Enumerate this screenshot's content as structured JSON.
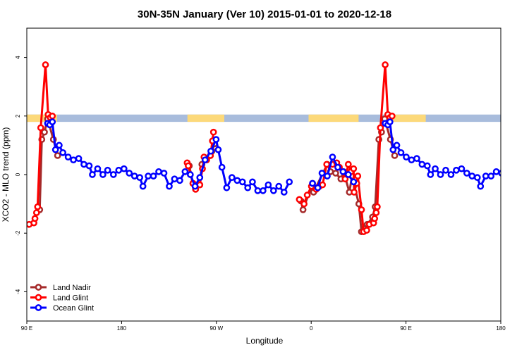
{
  "chart_data": {
    "type": "line",
    "title": "30N-35N January (Ver 10)   2015-01-01 to 2020-12-18",
    "xlabel": "Longitude",
    "ylabel": "XCO2 - MLO trend (ppm)",
    "xlim": [
      -90,
      270
    ],
    "ylim": [
      -5,
      5
    ],
    "x_ticks": [
      {
        "value": -90,
        "label": "90 E"
      },
      {
        "value": -18,
        "label": "180"
      },
      {
        "value": 54,
        "label": "90 W"
      },
      {
        "value": 126,
        "label": "0"
      },
      {
        "value": 198,
        "label": "90 E"
      },
      {
        "value": 270,
        "label": "180"
      }
    ],
    "y_ticks": [
      -4,
      -2,
      0,
      2,
      4
    ],
    "grid": false,
    "legend_position": "bottom-left",
    "surface_band": {
      "y_range": [
        1.8,
        2.05
      ],
      "ocean_color": "#a8bcdc",
      "land_color": "#fcd97a",
      "land_x_ranges": [
        [
          -90,
          -67
        ],
        [
          32,
          60
        ],
        [
          124,
          162
        ],
        [
          187,
          213
        ]
      ]
    },
    "series": [
      {
        "name": "Land Nadir",
        "color": "#a52a2a",
        "points": [
          [
            -80.2,
            -1.2
          ],
          [
            -78.6,
            1.2
          ],
          [
            -76.6,
            1.45
          ],
          [
            -74.2,
            1.9
          ],
          [
            -69.8,
            1.2
          ],
          [
            -66.6,
            0.65
          ],
          [
            33.4,
            0.3
          ],
          [
            36.2,
            -0.3
          ],
          [
            38.2,
            -0.5
          ],
          [
            41.4,
            -0.35
          ],
          [
            43,
            0.35
          ],
          [
            49.4,
            0.65
          ],
          [
            50.6,
            0.8
          ],
          [
            52.6,
            1.05
          ],
          [
            118.2,
            -0.9
          ],
          [
            119.8,
            -1.2
          ],
          [
            127,
            -0.3
          ],
          [
            127.8,
            -0.6
          ],
          [
            138.2,
            0.35
          ],
          [
            140.6,
            0.1
          ],
          [
            144.6,
            0.05
          ],
          [
            148.6,
            -0.15
          ],
          [
            150.6,
            0.1
          ],
          [
            155,
            -0.6
          ],
          [
            157,
            -0.05
          ],
          [
            162.2,
            -1
          ],
          [
            164.2,
            -1.95
          ],
          [
            166.2,
            -1.85
          ],
          [
            168.6,
            -1.7
          ],
          [
            172.6,
            -1.45
          ],
          [
            174.6,
            -1.1
          ],
          [
            177.4,
            1.2
          ],
          [
            179.4,
            1.45
          ],
          [
            181.8,
            1.9
          ],
          [
            186.2,
            1.2
          ],
          [
            189.4,
            0.65
          ]
        ]
      },
      {
        "name": "Land Glint",
        "color": "#ff0000",
        "points": [
          [
            -88.2,
            -1.7
          ],
          [
            -84.6,
            -1.65
          ],
          [
            -83.8,
            -1.5
          ],
          [
            -82.6,
            -1.3
          ],
          [
            -81.8,
            -1.1
          ],
          [
            -79.4,
            1.6
          ],
          [
            -75.8,
            3.75
          ],
          [
            -73.8,
            2.05
          ],
          [
            -72.2,
            1.95
          ],
          [
            -70.6,
            2.0
          ],
          [
            31.8,
            0.4
          ],
          [
            32.6,
            0.3
          ],
          [
            36.2,
            -0.3
          ],
          [
            38.2,
            -0.5
          ],
          [
            41.4,
            -0.35
          ],
          [
            43.4,
            0.2
          ],
          [
            44.6,
            0.6
          ],
          [
            46.6,
            0.5
          ],
          [
            49.4,
            0.65
          ],
          [
            51,
            1.15
          ],
          [
            51.8,
            1.45
          ],
          [
            117,
            -0.85
          ],
          [
            120.6,
            -1.0
          ],
          [
            123,
            -0.7
          ],
          [
            126.2,
            -0.4
          ],
          [
            129.8,
            -0.5
          ],
          [
            132.2,
            -0.4
          ],
          [
            134.6,
            -0.35
          ],
          [
            137.8,
            0.35
          ],
          [
            142.2,
            0.35
          ],
          [
            145.4,
            0.4
          ],
          [
            147.4,
            0.25
          ],
          [
            151.8,
            -0.15
          ],
          [
            154.2,
            0.35
          ],
          [
            156.2,
            0.1
          ],
          [
            158.2,
            0.2
          ],
          [
            158.6,
            -0.6
          ],
          [
            160.6,
            -0.3
          ],
          [
            161.4,
            -0.05
          ],
          [
            164.2,
            -1.2
          ],
          [
            165.8,
            -1.95
          ],
          [
            168.2,
            -1.9
          ],
          [
            170.2,
            -1.7
          ],
          [
            173.4,
            -1.65
          ],
          [
            174.2,
            -1.5
          ],
          [
            175.4,
            -1.3
          ],
          [
            176.2,
            -1.1
          ],
          [
            178.6,
            1.6
          ],
          [
            182.2,
            3.75
          ],
          [
            184.2,
            2.05
          ],
          [
            185.8,
            1.95
          ],
          [
            187.4,
            2.0
          ]
        ]
      },
      {
        "name": "Ocean Glint",
        "color": "#0000ff",
        "points": [
          [
            -74.2,
            1.75
          ],
          [
            -72.6,
            1.7
          ],
          [
            -70.6,
            1.8
          ],
          [
            -68.2,
            0.85
          ],
          [
            -65.4,
            1.0
          ],
          [
            -62.6,
            0.75
          ],
          [
            -58.6,
            0.6
          ],
          [
            -54.6,
            0.5
          ],
          [
            -50.6,
            0.55
          ],
          [
            -46.6,
            0.35
          ],
          [
            -42.6,
            0.3
          ],
          [
            -40.2,
            0.0
          ],
          [
            -36.2,
            0.2
          ],
          [
            -32.2,
            0.0
          ],
          [
            -28.6,
            0.15
          ],
          [
            -24.2,
            0.0
          ],
          [
            -20.2,
            0.15
          ],
          [
            -16.2,
            0.2
          ],
          [
            -12.2,
            0.05
          ],
          [
            -8.2,
            -0.05
          ],
          [
            -4.2,
            -0.1
          ],
          [
            -1.8,
            -0.4
          ],
          [
            2.2,
            -0.05
          ],
          [
            6.2,
            -0.05
          ],
          [
            10.2,
            0.1
          ],
          [
            14.2,
            0.05
          ],
          [
            18.2,
            -0.4
          ],
          [
            22.2,
            -0.15
          ],
          [
            26.2,
            -0.2
          ],
          [
            30.2,
            0.1
          ],
          [
            34.2,
            0.0
          ],
          [
            37.8,
            -0.4
          ],
          [
            41.4,
            -0.1
          ],
          [
            45.4,
            0.5
          ],
          [
            49.8,
            0.8
          ],
          [
            53.8,
            1.2
          ],
          [
            55.4,
            0.85
          ],
          [
            58.2,
            0.25
          ],
          [
            61.8,
            -0.45
          ],
          [
            65.8,
            -0.1
          ],
          [
            69.8,
            -0.2
          ],
          [
            73.8,
            -0.25
          ],
          [
            77.8,
            -0.45
          ],
          [
            81.4,
            -0.25
          ],
          [
            85.4,
            -0.55
          ],
          [
            89.4,
            -0.55
          ],
          [
            93.4,
            -0.35
          ],
          [
            97.4,
            -0.55
          ],
          [
            101.4,
            -0.4
          ],
          [
            105.4,
            -0.6
          ],
          [
            109.4,
            -0.25
          ],
          [
            127,
            -0.3
          ],
          [
            131,
            -0.45
          ],
          [
            134.2,
            0.05
          ],
          [
            138.2,
            -0.05
          ],
          [
            142.2,
            0.6
          ],
          [
            146.2,
            0.25
          ],
          [
            150.2,
            0.1
          ],
          [
            154.2,
            0.0
          ],
          [
            158.2,
            -0.25
          ],
          [
            182.2,
            1.75
          ],
          [
            184.2,
            1.7
          ],
          [
            185.8,
            1.8
          ],
          [
            188.2,
            0.85
          ],
          [
            191,
            1.0
          ],
          [
            194.2,
            0.75
          ],
          [
            198.2,
            0.6
          ],
          [
            202.2,
            0.5
          ],
          [
            206.2,
            0.55
          ],
          [
            210.2,
            0.35
          ],
          [
            214.2,
            0.3
          ],
          [
            216.6,
            0.0
          ],
          [
            220.2,
            0.2
          ],
          [
            224.2,
            0.0
          ],
          [
            228.2,
            0.15
          ],
          [
            232.2,
            0.0
          ],
          [
            236.2,
            0.15
          ],
          [
            240.2,
            0.2
          ],
          [
            244.2,
            0.05
          ],
          [
            248.2,
            -0.05
          ],
          [
            252.2,
            -0.1
          ],
          [
            254.6,
            -0.4
          ],
          [
            258.6,
            -0.05
          ],
          [
            262.6,
            -0.05
          ],
          [
            266.6,
            0.1
          ],
          [
            270.6,
            0.05
          ]
        ]
      }
    ]
  }
}
